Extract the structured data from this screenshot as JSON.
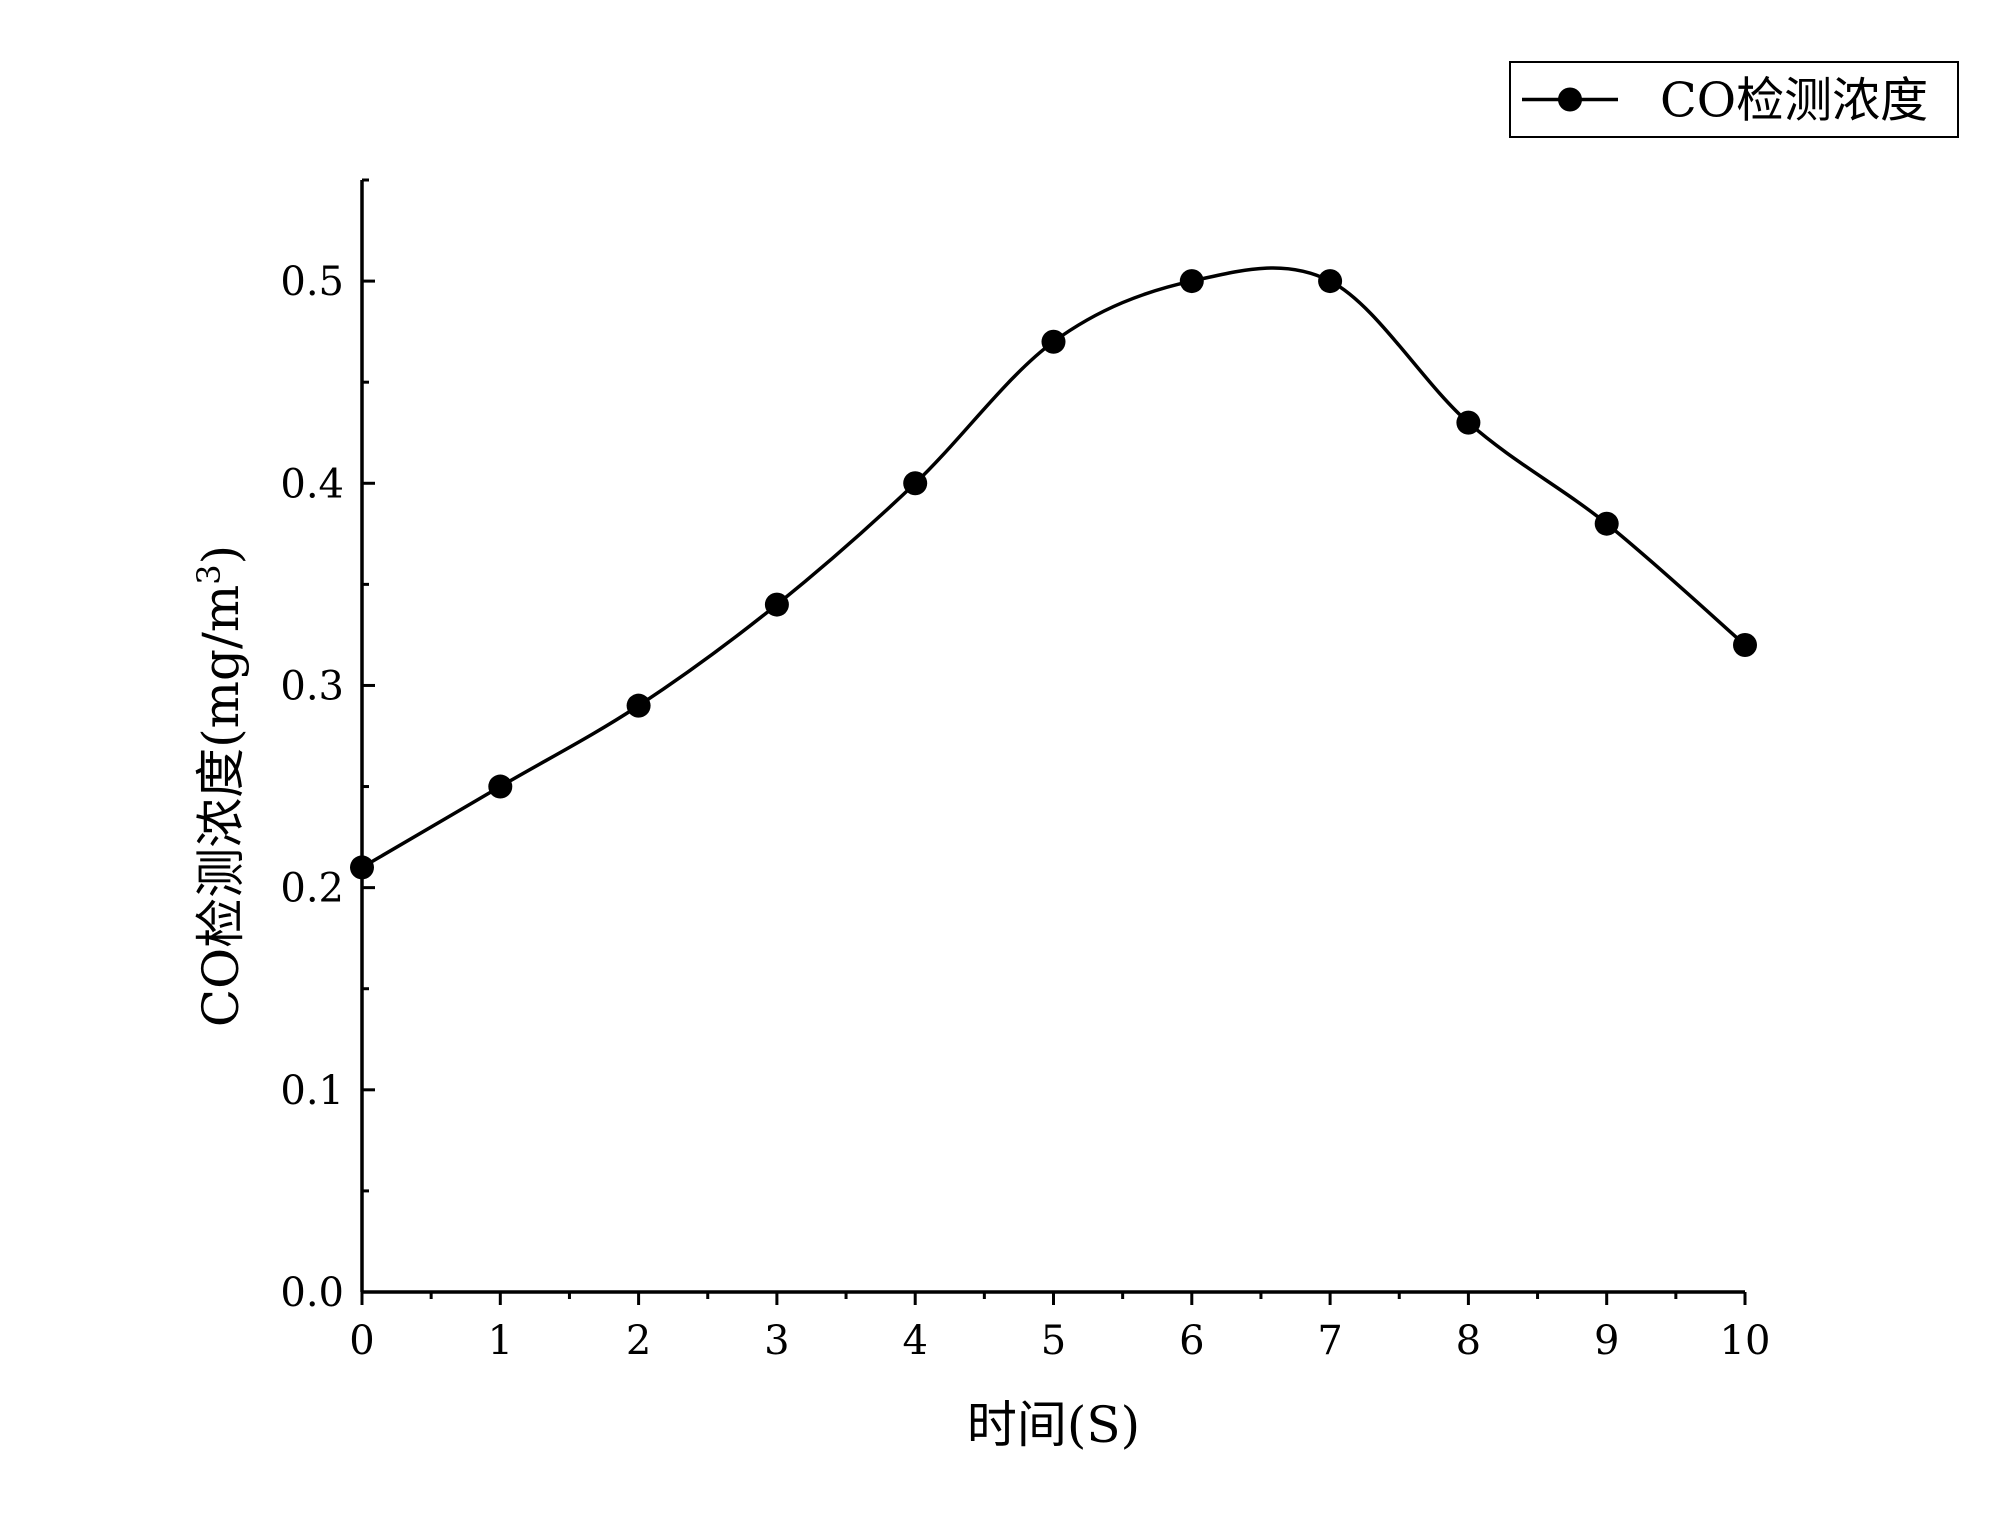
{
  "chart_data": {
    "type": "line",
    "title": "",
    "xlabel": "时间(S)",
    "ylabel": "CO检测浓度(mg/m",
    "ylabel_superscript": "3",
    "ylabel_close": ")",
    "xlim": [
      0,
      10
    ],
    "ylim": [
      0,
      0.55
    ],
    "x_ticks": [
      0,
      1,
      2,
      3,
      4,
      5,
      6,
      7,
      8,
      9,
      10
    ],
    "x_tick_labels": [
      "0",
      "1",
      "2",
      "3",
      "4",
      "5",
      "6",
      "7",
      "8",
      "9",
      "10"
    ],
    "y_ticks": [
      0.0,
      0.1,
      0.2,
      0.3,
      0.4,
      0.5
    ],
    "y_tick_labels": [
      "0.0",
      "0.1",
      "0.2",
      "0.3",
      "0.4",
      "0.5"
    ],
    "grid": false,
    "legend_position": "top-right",
    "smooth": true,
    "series": [
      {
        "name": "CO检测浓度",
        "color": "#000000",
        "marker": "circle",
        "x": [
          0,
          1,
          2,
          3,
          4,
          5,
          6,
          7,
          8,
          9,
          10
        ],
        "y": [
          0.21,
          0.25,
          0.29,
          0.34,
          0.4,
          0.47,
          0.5,
          0.5,
          0.43,
          0.38,
          0.32
        ]
      }
    ]
  }
}
